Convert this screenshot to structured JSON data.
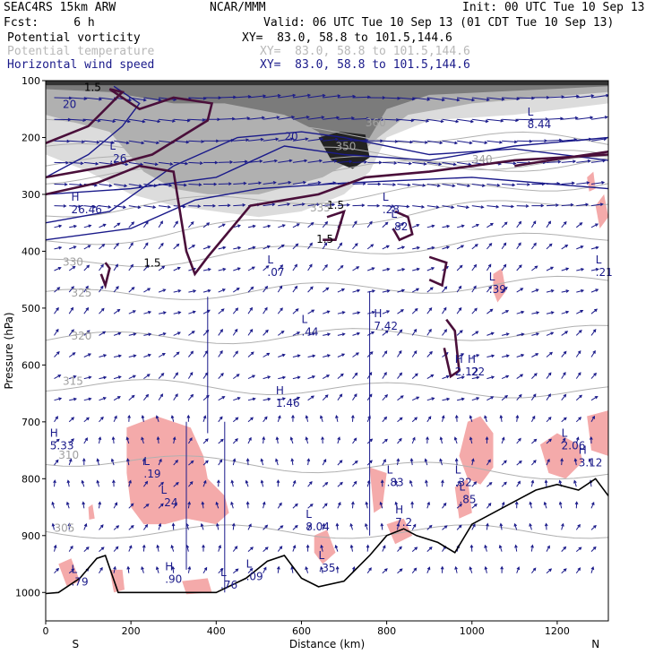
{
  "header": {
    "model": "SEAC4RS 15km ARW",
    "org": "NCAR/MMM",
    "init": "Init: 00 UTC Tue 10 Sep 13",
    "fcst": "Fcst:     6 h",
    "valid": "Valid: 06 UTC Tue 10 Sep 13 (01 CDT Tue 10 Sep 13)",
    "fields": [
      {
        "name": "Potential vorticity",
        "xy": "XY=  83.0, 58.8 to 101.5,144.6",
        "color": "#000000"
      },
      {
        "name": "Potential temperature",
        "xy": "XY=  83.0, 58.8 to 101.5,144.6",
        "color": "#b8b8b8"
      },
      {
        "name": "Horizontal wind speed",
        "xy": "XY=  83.0, 58.8 to 101.5,144.6",
        "color": "#1a1a8a"
      }
    ]
  },
  "chart_data": {
    "type": "cross-section",
    "xlabel": "Distance (km)",
    "ylabel": "Pressure (hPa)",
    "xlim": [
      0,
      1320
    ],
    "ylim": [
      1050,
      100
    ],
    "x_ticks": [
      0,
      200,
      400,
      600,
      800,
      1000,
      1200
    ],
    "y_ticks": [
      100,
      200,
      300,
      400,
      500,
      600,
      700,
      800,
      900,
      1000
    ],
    "end_labels": {
      "left": "S",
      "right": "N"
    },
    "colors": {
      "pv_contour": "#4a0f3a",
      "theta": "#b0b0b0",
      "wind_speed": "#1a1a8a",
      "shading": "#f4aaaa",
      "jet": "#555555"
    },
    "terrain": [
      [
        0,
        1002
      ],
      [
        30,
        1000
      ],
      [
        80,
        975
      ],
      [
        120,
        940
      ],
      [
        140,
        935
      ],
      [
        170,
        1000
      ],
      [
        230,
        1000
      ],
      [
        400,
        1000
      ],
      [
        470,
        975
      ],
      [
        520,
        945
      ],
      [
        560,
        935
      ],
      [
        600,
        975
      ],
      [
        640,
        990
      ],
      [
        700,
        980
      ],
      [
        760,
        935
      ],
      [
        800,
        900
      ],
      [
        840,
        888
      ],
      [
        870,
        900
      ],
      [
        920,
        912
      ],
      [
        960,
        930
      ],
      [
        1000,
        880
      ],
      [
        1050,
        860
      ],
      [
        1100,
        840
      ],
      [
        1150,
        820
      ],
      [
        1200,
        810
      ],
      [
        1250,
        820
      ],
      [
        1290,
        800
      ],
      [
        1320,
        830
      ]
    ],
    "theta_contours": [
      {
        "label": "305",
        "x": 20,
        "p": 893
      },
      {
        "label": "310",
        "x": 30,
        "p": 765
      },
      {
        "label": "315",
        "x": 40,
        "p": 635
      },
      {
        "label": "320",
        "x": 60,
        "p": 555
      },
      {
        "label": "325",
        "x": 60,
        "p": 480
      },
      {
        "label": "330",
        "x": 40,
        "p": 425
      },
      {
        "label": "335",
        "x": 620,
        "p": 330
      },
      {
        "label": "340",
        "x": 1000,
        "p": 245
      },
      {
        "label": "350",
        "x": 680,
        "p": 222
      },
      {
        "label": "360",
        "x": 750,
        "p": 180
      }
    ],
    "wind_labels": [
      {
        "label": "20",
        "x": 560,
        "p": 205
      },
      {
        "label": "20",
        "x": 40,
        "p": 148
      }
    ],
    "pv_labels": [
      {
        "label": "1.5",
        "x": 90,
        "p": 118
      },
      {
        "label": "1.5",
        "x": 660,
        "p": 325
      },
      {
        "label": "1.5",
        "x": 635,
        "p": 385
      },
      {
        "label": "1.5",
        "x": 230,
        "p": 427
      }
    ],
    "extrema": [
      {
        "mark": "L",
        "value": "8.44",
        "x": 1130,
        "p": 180
      },
      {
        "mark": "L",
        "value": ".26",
        "x": 150,
        "p": 240
      },
      {
        "mark": "H",
        "value": "26.46",
        "x": 60,
        "p": 330
      },
      {
        "mark": "L",
        "value": ".28",
        "x": 790,
        "p": 330
      },
      {
        "mark": "L",
        "value": ".82",
        "x": 810,
        "p": 360
      },
      {
        "mark": "L",
        "value": ".07",
        "x": 520,
        "p": 440
      },
      {
        "mark": "L",
        "value": ".21",
        "x": 1290,
        "p": 440
      },
      {
        "mark": "L",
        "value": ".39",
        "x": 1040,
        "p": 470
      },
      {
        "mark": "L",
        "value": ".44",
        "x": 600,
        "p": 545
      },
      {
        "mark": "H",
        "value": "7.42",
        "x": 770,
        "p": 535
      },
      {
        "mark": "H",
        "value": "2.12",
        "x": 960,
        "p": 615
      },
      {
        "mark": "H",
        "value": ".22",
        "x": 990,
        "p": 615
      },
      {
        "mark": "H",
        "value": "1.46",
        "x": 540,
        "p": 670
      },
      {
        "mark": "H",
        "value": "5.33",
        "x": 10,
        "p": 745
      },
      {
        "mark": "L",
        "value": "2.06",
        "x": 1210,
        "p": 745
      },
      {
        "mark": "H",
        "value": "3.12",
        "x": 1250,
        "p": 775
      },
      {
        "mark": "L",
        "value": ".19",
        "x": 230,
        "p": 795
      },
      {
        "mark": "L",
        "value": ".24",
        "x": 270,
        "p": 845
      },
      {
        "mark": "L",
        "value": ".83",
        "x": 800,
        "p": 810
      },
      {
        "mark": "L",
        "value": ".32",
        "x": 960,
        "p": 810
      },
      {
        "mark": "L",
        "value": ".85",
        "x": 970,
        "p": 840
      },
      {
        "mark": "L",
        "value": "8.04",
        "x": 610,
        "p": 888
      },
      {
        "mark": "H",
        "value": "7.2",
        "x": 820,
        "p": 880
      },
      {
        "mark": "L",
        "value": ".35",
        "x": 640,
        "p": 960
      },
      {
        "mark": "H",
        "value": ".90",
        "x": 280,
        "p": 980
      },
      {
        "mark": "L",
        "value": ".76",
        "x": 410,
        "p": 990
      },
      {
        "mark": "L",
        "value": ".09",
        "x": 470,
        "p": 975
      },
      {
        "mark": "L",
        "value": ".79",
        "x": 60,
        "p": 985
      }
    ]
  }
}
